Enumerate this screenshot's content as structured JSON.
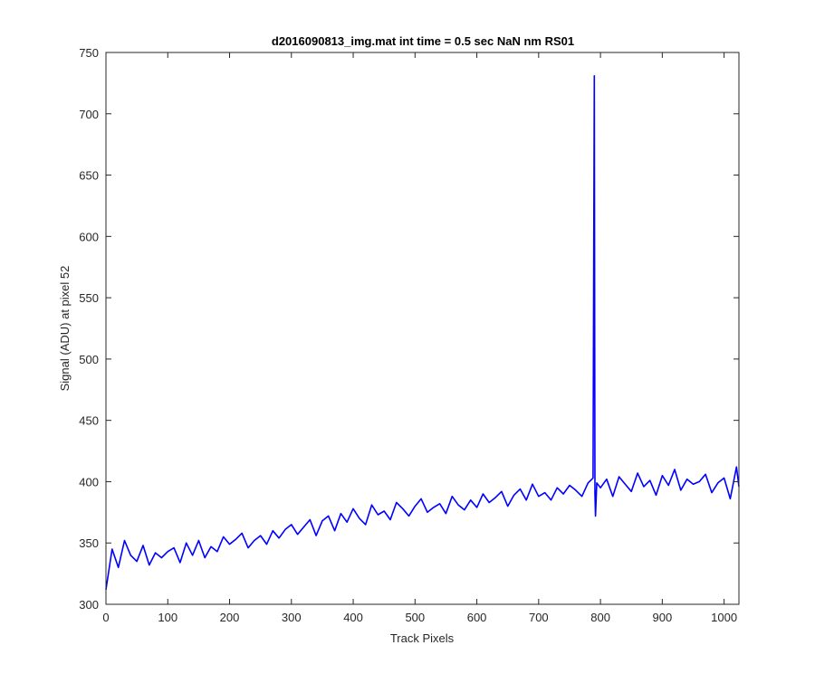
{
  "chart_data": {
    "type": "line",
    "title": "d2016090813_img.mat int time = 0.5 sec  NaN nm RS01",
    "xlabel": "Track Pixels",
    "ylabel": "Signal (ADU) at pixel 52",
    "xlim": [
      0,
      1024
    ],
    "ylim": [
      300,
      750
    ],
    "xticks": [
      0,
      100,
      200,
      300,
      400,
      500,
      600,
      700,
      800,
      900,
      1000
    ],
    "yticks": [
      300,
      350,
      400,
      450,
      500,
      550,
      600,
      650,
      700,
      750
    ],
    "grid": false,
    "line_color": "#0000ff",
    "series": [
      {
        "x": [
          0,
          10,
          20,
          30,
          40,
          50,
          60,
          70,
          80,
          90,
          100,
          110,
          120,
          130,
          140,
          150,
          160,
          170,
          180,
          190,
          200,
          210,
          220,
          230,
          240,
          250,
          260,
          270,
          280,
          290,
          300,
          310,
          320,
          330,
          340,
          350,
          360,
          370,
          380,
          390,
          400,
          410,
          420,
          430,
          440,
          450,
          460,
          470,
          480,
          490,
          500,
          510,
          520,
          530,
          540,
          550,
          560,
          570,
          580,
          590,
          600,
          610,
          620,
          630,
          640,
          650,
          660,
          670,
          680,
          690,
          700,
          710,
          720,
          730,
          740,
          750,
          760,
          770,
          780,
          788,
          790,
          791,
          792,
          794,
          800,
          810,
          820,
          830,
          840,
          850,
          860,
          870,
          880,
          890,
          900,
          910,
          920,
          930,
          940,
          950,
          960,
          970,
          980,
          990,
          1000,
          1010,
          1020,
          1024
        ],
        "y": [
          312,
          345,
          330,
          352,
          340,
          335,
          348,
          332,
          342,
          338,
          343,
          346,
          334,
          350,
          340,
          352,
          338,
          347,
          343,
          355,
          349,
          353,
          358,
          346,
          352,
          356,
          349,
          360,
          354,
          361,
          365,
          357,
          363,
          369,
          356,
          368,
          372,
          360,
          374,
          367,
          378,
          370,
          365,
          381,
          373,
          376,
          369,
          383,
          378,
          372,
          380,
          386,
          375,
          379,
          382,
          374,
          388,
          381,
          377,
          385,
          379,
          390,
          383,
          387,
          392,
          380,
          389,
          394,
          385,
          398,
          388,
          391,
          385,
          395,
          390,
          397,
          393,
          388,
          399,
          403,
          731,
          390,
          372,
          399,
          395,
          402,
          388,
          404,
          398,
          392,
          407,
          396,
          401,
          389,
          405,
          397,
          410,
          393,
          402,
          398,
          400,
          406,
          391,
          399,
          403,
          386,
          412,
          396
        ]
      }
    ]
  }
}
